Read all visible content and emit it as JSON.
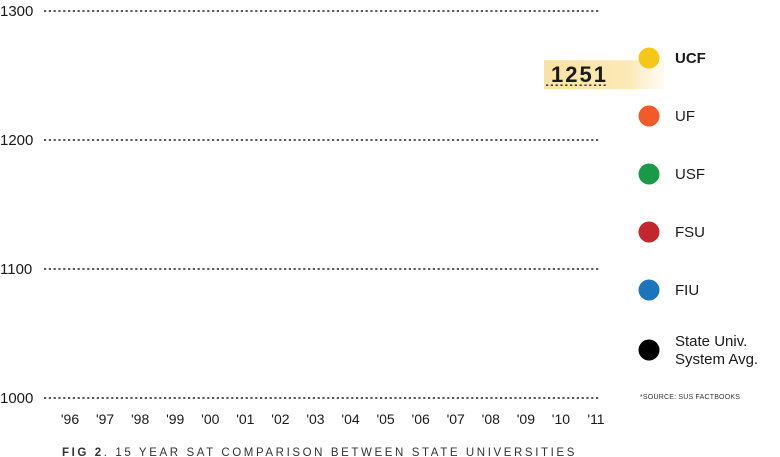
{
  "chart_data": {
    "type": "line",
    "title": "",
    "caption": {
      "fig_label": "FIG 2",
      "text": ". 15 YEAR SAT COMPARISON BETWEEN STATE UNIVERSITIES"
    },
    "x": [
      "'96",
      "'97",
      "'98",
      "'99",
      "'00",
      "'01",
      "'02",
      "'03",
      "'04",
      "'05",
      "'06",
      "'07",
      "'08",
      "'09",
      "'10",
      "'11"
    ],
    "ylim": [
      1000,
      1300
    ],
    "yticks": [
      "1000",
      "1100",
      "1200",
      "1300"
    ],
    "grid": true,
    "series": [
      {
        "name": "UCF",
        "color": "#f6c619",
        "highlight": true
      },
      {
        "name": "UF",
        "color": "#f15a29"
      },
      {
        "name": "USF",
        "color": "#1a9a49"
      },
      {
        "name": "FSU",
        "color": "#c1272d"
      },
      {
        "name": "FIU",
        "color": "#1c75bc"
      },
      {
        "name": "State Univ. System Avg.",
        "color": "#000000"
      }
    ],
    "annotation": {
      "series": "UCF",
      "value": 1251,
      "label": "1251"
    },
    "legend_position": "right",
    "source_note": "*SOURCE: SUS FACTBOOKS"
  }
}
